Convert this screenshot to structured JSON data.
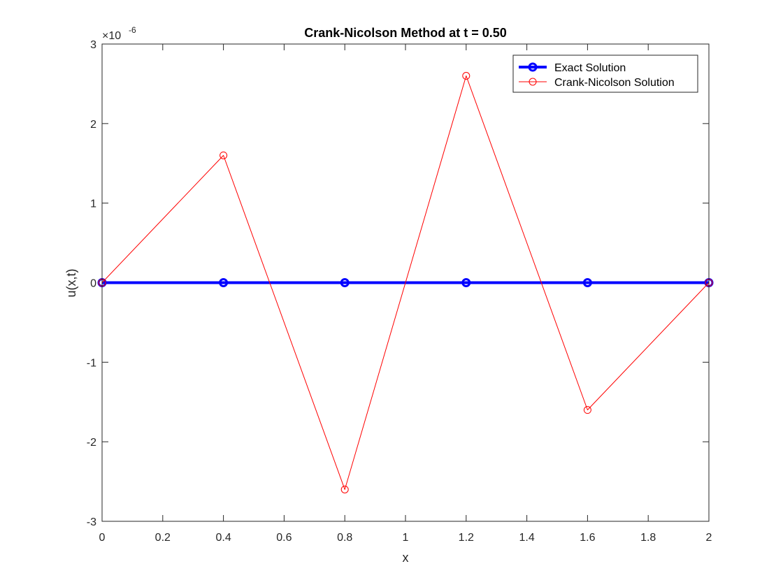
{
  "chart_data": {
    "type": "line",
    "title": "Crank-Nicolson Method at t = 0.50",
    "xlabel": "x",
    "ylabel": "u(x,t)",
    "xlim": [
      0,
      2
    ],
    "ylim": [
      -3e-06,
      3e-06
    ],
    "y_exponent_label": "×10",
    "y_exponent_value": "-6",
    "grid": false,
    "legend_position": "top-right",
    "x_ticks": [
      "0",
      "0.2",
      "0.4",
      "0.6",
      "0.8",
      "1",
      "1.2",
      "1.4",
      "1.6",
      "1.8",
      "2"
    ],
    "x_tick_values": [
      0,
      0.2,
      0.4,
      0.6,
      0.8,
      1.0,
      1.2,
      1.4,
      1.6,
      1.8,
      2.0
    ],
    "y_ticks": [
      "-3",
      "-2",
      "-1",
      "0",
      "1",
      "2",
      "3"
    ],
    "y_tick_values": [
      -3e-06,
      -2e-06,
      -1e-06,
      0,
      1e-06,
      2e-06,
      3e-06
    ],
    "series": [
      {
        "name": "Exact Solution",
        "color": "#0000ff",
        "marker": "circle",
        "x": [
          0,
          0.4,
          0.8,
          1.2,
          1.6,
          2.0
        ],
        "y": [
          0,
          0,
          0,
          0,
          0,
          0
        ]
      },
      {
        "name": "Crank-Nicolson Solution",
        "color": "#ff0000",
        "marker": "circle",
        "x": [
          0,
          0.4,
          0.8,
          1.2,
          1.6,
          2.0
        ],
        "y": [
          0,
          1.6e-06,
          -2.6e-06,
          2.6e-06,
          -1.6e-06,
          0
        ]
      }
    ]
  }
}
